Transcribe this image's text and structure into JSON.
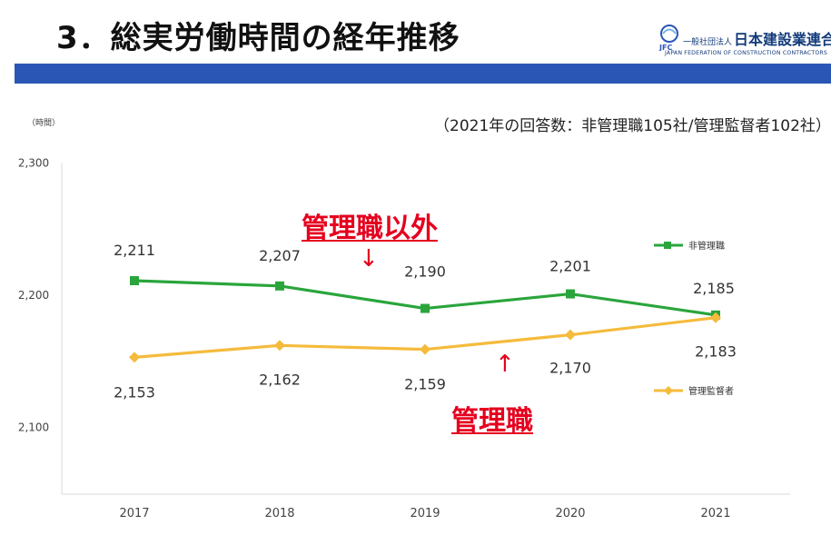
{
  "page": {
    "title": "3．総実労働時間の経年推移",
    "respondents": "（2021年の回答数：非管理職105社/管理監督者102社）",
    "unit": "（時間）"
  },
  "logo": {
    "prefix": "一般社団法人",
    "name": "日本建設業連合会",
    "english": "JAPAN FEDERATION OF CONSTRUCTION CONTRACTORS",
    "mark_text": "JFC",
    "color": "#123a7a"
  },
  "annotations": {
    "non_management_label": "管理職以外",
    "non_management_arrow": "↓",
    "management_label": "管理職",
    "management_arrow": "↑",
    "color": "#e5001e"
  },
  "chart_data": {
    "type": "line",
    "categories": [
      "2017",
      "2018",
      "2019",
      "2020",
      "2021"
    ],
    "ylim": [
      2100,
      2300
    ],
    "yticks": [
      2100,
      2200,
      2300
    ],
    "ytick_labels": [
      "2,100",
      "2,200",
      "2,300"
    ],
    "grid": false,
    "legend_position": "right",
    "series": [
      {
        "name": "非管理職",
        "color": "#2aa53c",
        "marker": "square",
        "values": [
          2211,
          2207,
          2190,
          2201,
          2185
        ],
        "labels": [
          "2,211",
          "2,207",
          "2,190",
          "2,201",
          "2,185"
        ]
      },
      {
        "name": "管理監督者",
        "color": "#f5bb3c",
        "marker": "diamond",
        "values": [
          2153,
          2162,
          2159,
          2170,
          2183
        ],
        "labels": [
          "2,153",
          "2,162",
          "2,159",
          "2,170",
          "2,183"
        ]
      }
    ]
  }
}
